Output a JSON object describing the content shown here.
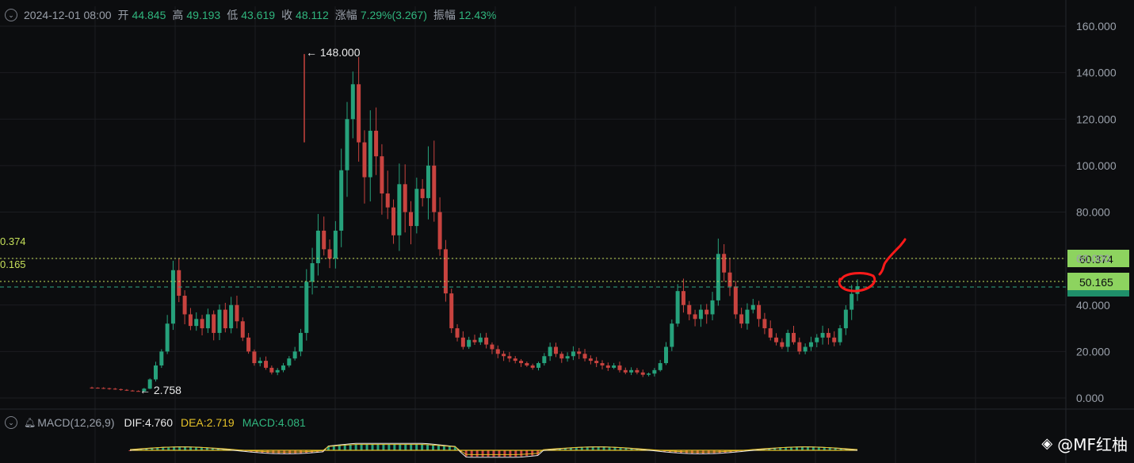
{
  "header": {
    "datetime": "2024-12-01 08:00",
    "open_label": "开",
    "open_value": "44.845",
    "high_label": "高",
    "high_value": "49.193",
    "low_label": "低",
    "low_value": "43.619",
    "close_label": "收",
    "close_value": "48.112",
    "change_label": "涨幅",
    "change_value": "7.29%(3.267)",
    "amplitude_label": "振幅",
    "amplitude_value": "12.43%"
  },
  "macd_panel": {
    "name": "MACD(12,26,9)",
    "dif": "DIF:4.760",
    "dea": "DEA:2.719",
    "macd": "MACD:4.081"
  },
  "y_axis_ticks": [
    "160.000",
    "140.000",
    "120.000",
    "100.000",
    "80.000",
    "60.000",
    "40.000",
    "20.000",
    "0.000"
  ],
  "price_lines": {
    "upper": "60.374",
    "lower": "50.165",
    "upper_left": "0.374",
    "lower_left": "0.165",
    "current_partial": "48.112"
  },
  "annotations": {
    "high_marker": "← 148.000",
    "low_marker": "← 2.758"
  },
  "watermark": "@MF红柚",
  "colors": {
    "background": "#0c0d0f",
    "up": "#26a17b",
    "down": "#c8433f",
    "level_line": "#c6e05a",
    "current_line": "#2fa585",
    "drawing": "#ff1a1a",
    "dea": "#e6c229"
  },
  "chart_data": {
    "type": "candlestick",
    "y_range": [
      0,
      160
    ],
    "y_ticks": [
      0,
      20,
      40,
      60,
      80,
      100,
      120,
      140,
      160
    ],
    "max_price": 148.0,
    "min_price": 2.758,
    "levels": [
      60.374,
      50.165
    ],
    "close_series": [
      4.4,
      4.3,
      4.2,
      4.0,
      3.8,
      3.5,
      3.2,
      3.0,
      2.9,
      4.0,
      8.0,
      14.0,
      20.0,
      32.0,
      55.0,
      44.0,
      36.0,
      31.0,
      34.0,
      30.0,
      36.0,
      28.0,
      38.0,
      30.0,
      40.0,
      33.0,
      26.0,
      20.0,
      15.0,
      16.0,
      13.0,
      11.0,
      12.0,
      14.0,
      17.0,
      20.0,
      28.0,
      50.0,
      58.0,
      72.0,
      64.0,
      60.0,
      72.0,
      98.0,
      120.0,
      135.0,
      110.0,
      95.0,
      115.0,
      104.0,
      88.0,
      82.0,
      70.0,
      92.0,
      80.0,
      74.0,
      90.0,
      86.0,
      100.0,
      80.0,
      64.0,
      45.0,
      30.0,
      26.0,
      22.0,
      25.0,
      24.0,
      26.0,
      23.0,
      21.0,
      19.0,
      18.0,
      17.0,
      16.0,
      15.0,
      14.0,
      13.0,
      15.0,
      18.0,
      22.0,
      19.0,
      17.0,
      18.0,
      20.0,
      19.0,
      17.0,
      16.0,
      15.0,
      14.0,
      13.0,
      14.0,
      12.0,
      11.0,
      12.0,
      11.0,
      10.0,
      10.5,
      12.0,
      15.0,
      22.0,
      32.0,
      46.0,
      40.0,
      36.0,
      34.0,
      38.0,
      36.0,
      42.0,
      62.0,
      54.0,
      48.0,
      36.0,
      32.0,
      38.0,
      40.0,
      34.0,
      30.0,
      26.0,
      24.0,
      22.0,
      28.0,
      24.0,
      20.0,
      22.0,
      24.0,
      26.0,
      28.0,
      26.0,
      24.0,
      30.0,
      38.0,
      44.8,
      48.1
    ]
  }
}
